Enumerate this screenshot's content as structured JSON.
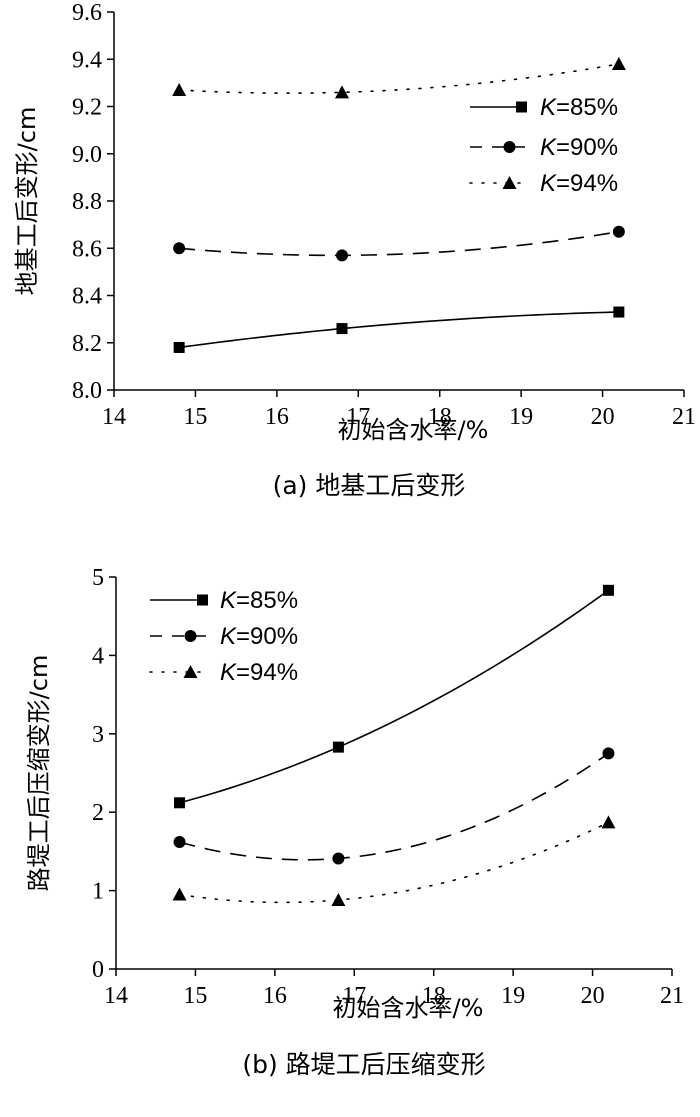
{
  "chart_data": [
    {
      "type": "line",
      "caption": "(a) 地基工后变形",
      "xlabel": "初始含水率/%",
      "ylabel": "地基工后变形/cm",
      "xlim": [
        14,
        21
      ],
      "ylim": [
        8.0,
        9.6
      ],
      "xticks": [
        "14",
        "15",
        "16",
        "17",
        "18",
        "19",
        "20",
        "21"
      ],
      "yticks": [
        "8.0",
        "8.2",
        "8.4",
        "8.6",
        "8.8",
        "9.0",
        "9.2",
        "9.4",
        "9.6"
      ],
      "legend_position": "right",
      "x": [
        14.8,
        16.8,
        20.2
      ],
      "series": [
        {
          "name": "K=85%",
          "k": "K",
          "rest": "=85%",
          "marker": "square",
          "dash": "solid",
          "values": [
            8.18,
            8.26,
            8.33
          ]
        },
        {
          "name": "K=90%",
          "k": "K",
          "rest": "=90%",
          "marker": "circle",
          "dash": "dashed",
          "values": [
            8.6,
            8.57,
            8.67
          ]
        },
        {
          "name": "K=94%",
          "k": "K",
          "rest": "=94%",
          "marker": "triangle",
          "dash": "dotted",
          "values": [
            9.27,
            9.26,
            9.38
          ]
        }
      ]
    },
    {
      "type": "line",
      "caption": "(b) 路堤工后压缩变形",
      "xlabel": "初始含水率/%",
      "ylabel": "路堤工后压缩变形/cm",
      "xlim": [
        14,
        21
      ],
      "ylim": [
        0,
        5
      ],
      "xticks": [
        "14",
        "15",
        "16",
        "17",
        "18",
        "19",
        "20",
        "21"
      ],
      "yticks": [
        "0",
        "1",
        "2",
        "3",
        "4",
        "5"
      ],
      "legend_position": "top-left",
      "x": [
        14.8,
        16.8,
        20.2
      ],
      "series": [
        {
          "name": "K=85%",
          "k": "K",
          "rest": "=85%",
          "marker": "square",
          "dash": "solid",
          "values": [
            2.12,
            2.83,
            4.83
          ]
        },
        {
          "name": "K=90%",
          "k": "K",
          "rest": "=90%",
          "marker": "circle",
          "dash": "dashed",
          "values": [
            1.62,
            1.41,
            2.75
          ]
        },
        {
          "name": "K=94%",
          "k": "K",
          "rest": "=94%",
          "marker": "triangle",
          "dash": "dotted",
          "values": [
            0.95,
            0.88,
            1.87
          ]
        }
      ]
    }
  ]
}
